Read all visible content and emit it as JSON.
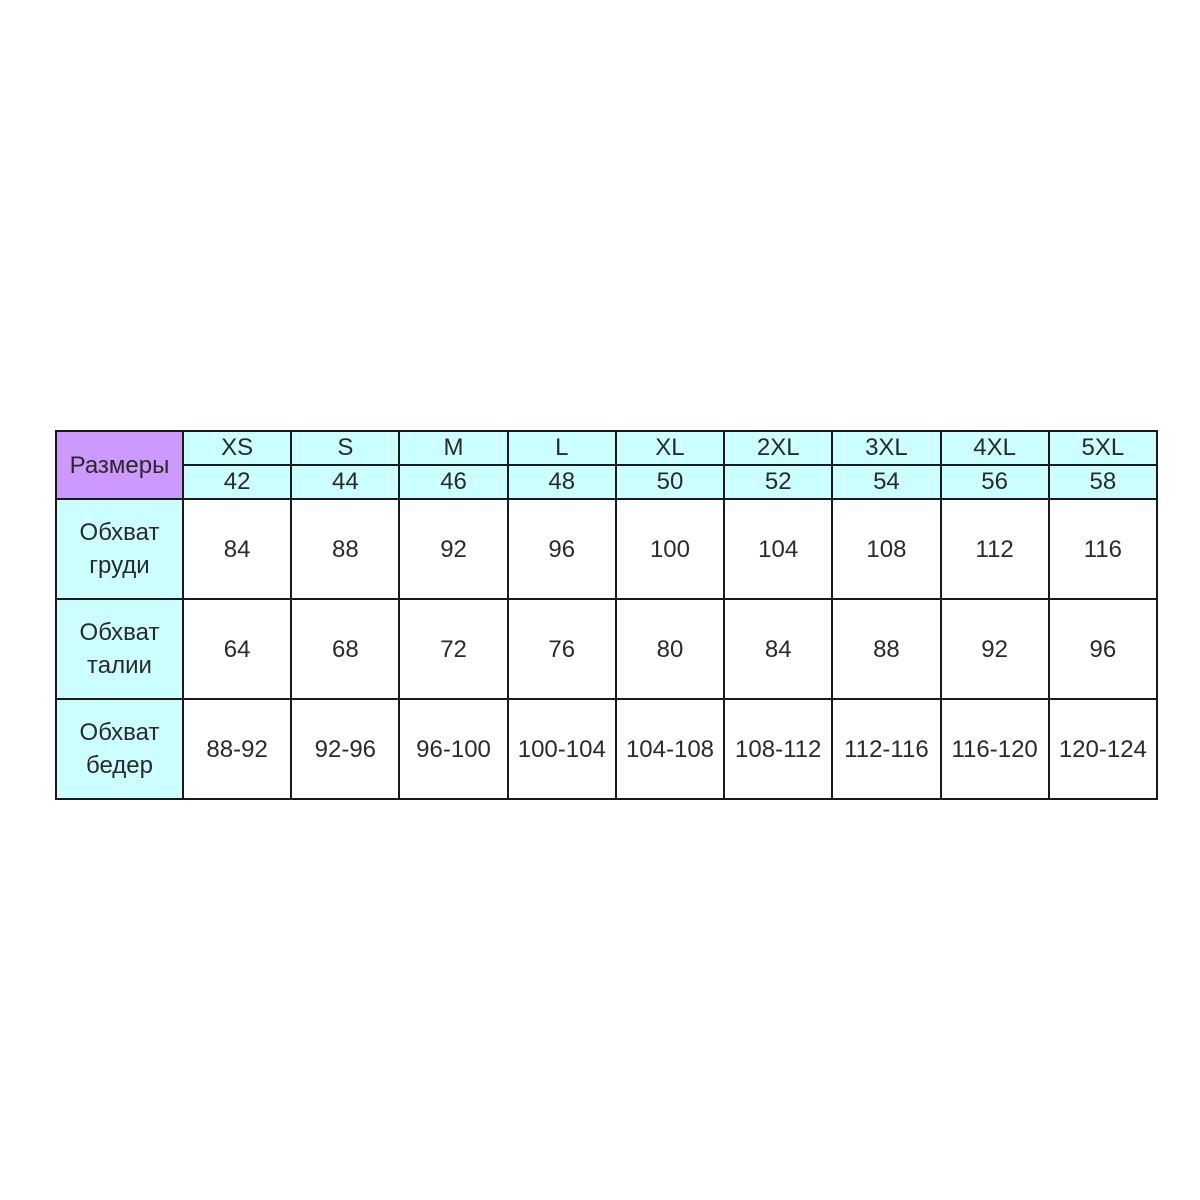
{
  "table": {
    "corner_label": "Размеры",
    "colors": {
      "corner": "#cc99ff",
      "header": "#ccffff",
      "border": "#1a1a1a"
    },
    "sizes": [
      "XS",
      "S",
      "M",
      "L",
      "XL",
      "2XL",
      "3XL",
      "4XL",
      "5XL"
    ],
    "ru_sizes": [
      "42",
      "44",
      "46",
      "48",
      "50",
      "52",
      "54",
      "56",
      "58"
    ],
    "rows": [
      {
        "label_line1": "Обхват",
        "label_line2": "груди",
        "values": [
          "84",
          "88",
          "92",
          "96",
          "100",
          "104",
          "108",
          "112",
          "116"
        ]
      },
      {
        "label_line1": "Обхват",
        "label_line2": "талии",
        "values": [
          "64",
          "68",
          "72",
          "76",
          "80",
          "84",
          "88",
          "92",
          "96"
        ]
      },
      {
        "label_line1": "Обхват",
        "label_line2": "бедер",
        "values": [
          "88-92",
          "92-96",
          "96-100",
          "100-104",
          "104-108",
          "108-112",
          "112-116",
          "116-120",
          "120-124"
        ]
      }
    ]
  }
}
